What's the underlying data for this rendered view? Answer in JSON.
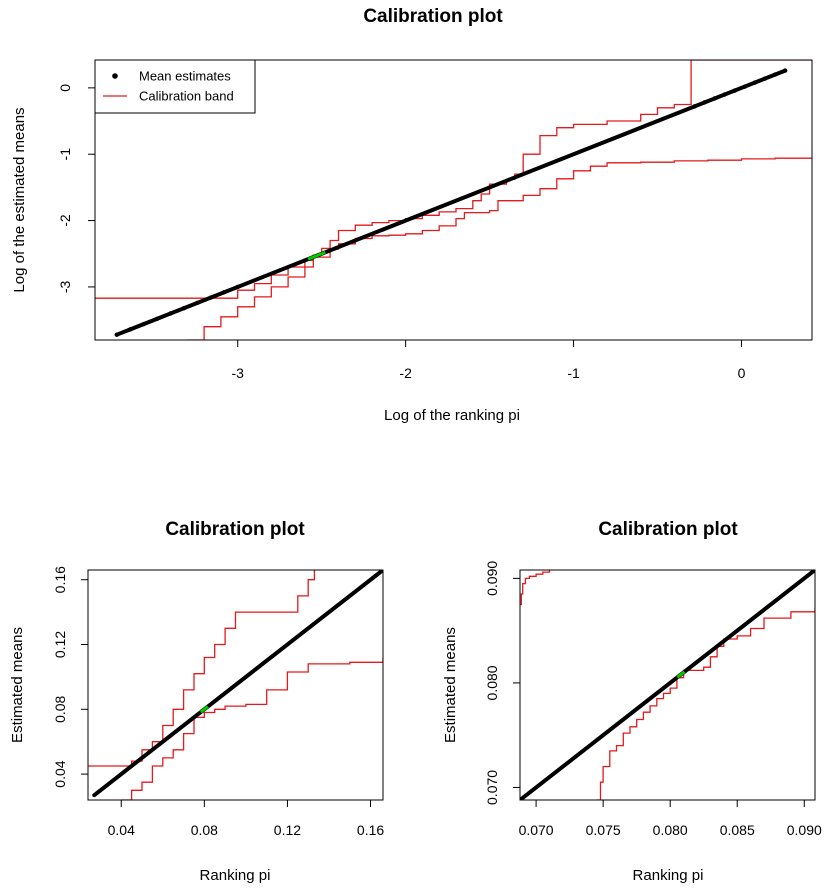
{
  "chart_data": [
    {
      "type": "line",
      "title": "Calibration plot",
      "xlabel": "Log of the ranking pi",
      "ylabel": "Log of the estimated means",
      "xlim": [
        -3.85,
        0.42
      ],
      "ylim": [
        -3.8,
        0.42
      ],
      "xticks": [
        -3,
        -2,
        -1,
        0
      ],
      "yticks": [
        -3,
        -2,
        -1,
        0
      ],
      "grid": false,
      "legend": {
        "position": "top-left",
        "entries": [
          {
            "name": "Mean estimates",
            "symbol": "point",
            "color": "#000000"
          },
          {
            "name": "Calibration band",
            "symbol": "line",
            "color": "#e41a1c"
          }
        ]
      },
      "series": [
        {
          "name": "Mean estimates",
          "kind": "diagonal",
          "x_range": [
            -3.72,
            0.26
          ],
          "color": "#000000"
        },
        {
          "name": "Calibration band",
          "part": "upper",
          "color": "#e41a1c",
          "x": [
            -3.85,
            -3.2,
            -3.0,
            -2.9,
            -2.8,
            -2.7,
            -2.6,
            -2.55,
            -2.5,
            -2.45,
            -2.4,
            -2.3,
            -2.2,
            -2.1,
            -2.0,
            -1.9,
            -1.8,
            -1.7,
            -1.6,
            -1.55,
            -1.5,
            -1.4,
            -1.35,
            -1.3,
            -1.2,
            -1.1,
            -1.0,
            -0.8,
            -0.6,
            -0.5,
            -0.4,
            -0.3,
            -0.3,
            0.42
          ],
          "y": [
            -3.17,
            -3.17,
            -3.05,
            -2.95,
            -2.82,
            -2.7,
            -2.6,
            -2.52,
            -2.42,
            -2.3,
            -2.15,
            -2.07,
            -2.03,
            -2.0,
            -1.97,
            -1.92,
            -1.87,
            -1.82,
            -1.7,
            -1.6,
            -1.45,
            -1.38,
            -1.3,
            -1.0,
            -0.72,
            -0.6,
            -0.55,
            -0.5,
            -0.4,
            -0.3,
            -0.25,
            -0.2,
            0.42,
            0.42
          ]
        },
        {
          "name": "Calibration band",
          "part": "lower",
          "color": "#e41a1c",
          "x": [
            -3.3,
            -3.2,
            -3.1,
            -3.0,
            -2.9,
            -2.8,
            -2.7,
            -2.6,
            -2.55,
            -2.45,
            -2.4,
            -2.3,
            -2.2,
            -2.1,
            -2.0,
            -1.9,
            -1.8,
            -1.7,
            -1.65,
            -1.5,
            -1.45,
            -1.3,
            -1.2,
            -1.1,
            -1.0,
            -0.9,
            -0.8,
            -0.6,
            -0.4,
            -0.2,
            0.0,
            0.2,
            0.42
          ],
          "y": [
            -3.8,
            -3.6,
            -3.45,
            -3.3,
            -3.15,
            -3.0,
            -2.85,
            -2.7,
            -2.55,
            -2.43,
            -2.35,
            -2.27,
            -2.23,
            -2.22,
            -2.2,
            -2.15,
            -2.08,
            -1.97,
            -1.88,
            -1.85,
            -1.7,
            -1.62,
            -1.52,
            -1.37,
            -1.25,
            -1.18,
            -1.13,
            -1.12,
            -1.1,
            -1.09,
            -1.07,
            -1.06,
            -1.06
          ]
        }
      ],
      "highlight": {
        "x": -2.53,
        "y": -2.53,
        "color": "#00cc00"
      }
    },
    {
      "type": "line",
      "title": "Calibration plot",
      "xlabel": "Ranking pi",
      "ylabel": "Estimated means",
      "xlim": [
        0.024,
        0.166
      ],
      "ylim": [
        0.024,
        0.166
      ],
      "xticks": [
        0.04,
        0.08,
        0.12,
        0.16
      ],
      "yticks": [
        0.04,
        0.08,
        0.12,
        0.16
      ],
      "grid": false,
      "series": [
        {
          "name": "Mean estimates",
          "kind": "diagonal",
          "x_range": [
            0.027,
            0.166
          ],
          "color": "#000000"
        },
        {
          "name": "Calibration band",
          "part": "upper",
          "color": "#e41a1c",
          "x": [
            0.024,
            0.04,
            0.045,
            0.05,
            0.055,
            0.06,
            0.065,
            0.07,
            0.075,
            0.08,
            0.085,
            0.09,
            0.095,
            0.1,
            0.11,
            0.12,
            0.125,
            0.13,
            0.133
          ],
          "y": [
            0.045,
            0.045,
            0.048,
            0.055,
            0.06,
            0.07,
            0.08,
            0.092,
            0.102,
            0.112,
            0.12,
            0.13,
            0.14,
            0.14,
            0.14,
            0.14,
            0.15,
            0.16,
            0.166
          ]
        },
        {
          "name": "Calibration band",
          "part": "lower",
          "color": "#e41a1c",
          "x": [
            0.04,
            0.045,
            0.05,
            0.055,
            0.06,
            0.065,
            0.07,
            0.075,
            0.08,
            0.085,
            0.09,
            0.1,
            0.11,
            0.12,
            0.13,
            0.14,
            0.15,
            0.166
          ],
          "y": [
            0.024,
            0.03,
            0.035,
            0.045,
            0.05,
            0.055,
            0.065,
            0.075,
            0.078,
            0.08,
            0.082,
            0.083,
            0.092,
            0.103,
            0.108,
            0.108,
            0.109,
            0.112
          ]
        }
      ],
      "highlight": {
        "x": 0.08,
        "y": 0.08,
        "color": "#00cc00"
      }
    },
    {
      "type": "line",
      "title": "Calibration plot",
      "xlabel": "Ranking pi",
      "ylabel": "Estimated means",
      "xlim": [
        0.0688,
        0.0908
      ],
      "ylim": [
        0.0688,
        0.0908
      ],
      "xticks": [
        0.07,
        0.075,
        0.08,
        0.085,
        0.09
      ],
      "yticks": [
        0.07,
        0.08,
        0.09
      ],
      "xtick_labels": [
        "0.070",
        "0.075",
        "0.080",
        "0.085",
        "0.090"
      ],
      "ytick_labels": [
        "0.070",
        "0.080",
        "0.090"
      ],
      "grid": false,
      "series": [
        {
          "name": "Mean estimates",
          "kind": "diagonal",
          "x_range": [
            0.0688,
            0.0908
          ],
          "color": "#000000"
        },
        {
          "name": "Calibration band",
          "part": "upper",
          "color": "#e41a1c",
          "x": [
            0.0688,
            0.0689,
            0.069,
            0.0692,
            0.0695,
            0.07,
            0.0705,
            0.071
          ],
          "y": [
            0.0875,
            0.0885,
            0.0895,
            0.09,
            0.0902,
            0.0904,
            0.0906,
            0.0908
          ]
        },
        {
          "name": "Calibration band",
          "part": "lower",
          "color": "#e41a1c",
          "x": [
            0.0745,
            0.0748,
            0.075,
            0.0755,
            0.076,
            0.0765,
            0.077,
            0.0775,
            0.078,
            0.0785,
            0.079,
            0.0795,
            0.08,
            0.0805,
            0.081,
            0.0815,
            0.082,
            0.0825,
            0.083,
            0.0835,
            0.084,
            0.085,
            0.086,
            0.087,
            0.088,
            0.089,
            0.09,
            0.0908
          ],
          "y": [
            0.0688,
            0.0705,
            0.072,
            0.0735,
            0.074,
            0.0752,
            0.0758,
            0.0765,
            0.0772,
            0.0778,
            0.0785,
            0.079,
            0.0795,
            0.0805,
            0.0812,
            0.0812,
            0.0812,
            0.0815,
            0.0825,
            0.0835,
            0.0842,
            0.0845,
            0.0852,
            0.0862,
            0.0862,
            0.0868,
            0.0868,
            0.0872
          ]
        }
      ],
      "highlight": {
        "x": 0.0808,
        "y": 0.0808,
        "color": "#00cc00"
      }
    }
  ]
}
